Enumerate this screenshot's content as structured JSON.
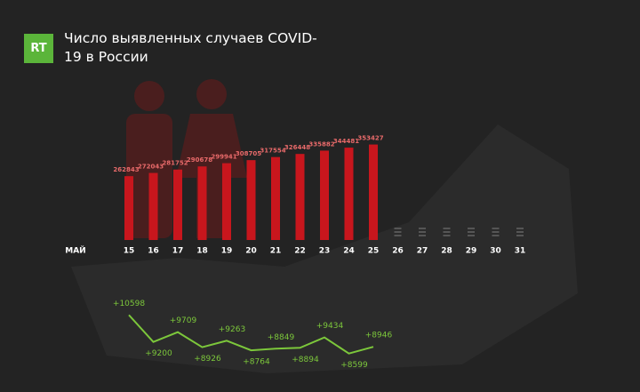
{
  "logo": "RT",
  "chart_data": [
    {
      "type": "bar",
      "title": "Число выявленных случаев COVID-19 в России",
      "x_label": "МАЙ",
      "color": "#c8161d",
      "label_color": "#e86a6a",
      "categories": [
        "15",
        "16",
        "17",
        "18",
        "19",
        "20",
        "21",
        "22",
        "23",
        "24",
        "25",
        "26",
        "27",
        "28",
        "29",
        "30",
        "31"
      ],
      "values": [
        262843,
        272043,
        281752,
        290678,
        299941,
        308705,
        317554,
        326448,
        335882,
        344481,
        353427,
        null,
        null,
        null,
        null,
        null,
        null
      ],
      "ylim": [
        80000,
        360000
      ]
    },
    {
      "type": "line",
      "color": "#7cc73b",
      "values": [
        10598,
        9200,
        9709,
        8926,
        9263,
        8764,
        8849,
        8894,
        9434,
        8599,
        8946,
        null,
        null,
        null,
        null,
        null,
        null
      ],
      "value_labels": [
        "+10598",
        "+9200",
        "+9709",
        "+8926",
        "+9263",
        "+8764",
        "+8849",
        "+8894",
        "+9434",
        "+8599",
        "+8946",
        null,
        null,
        null,
        null,
        null,
        null
      ],
      "ylim": [
        8400,
        10800
      ]
    }
  ]
}
